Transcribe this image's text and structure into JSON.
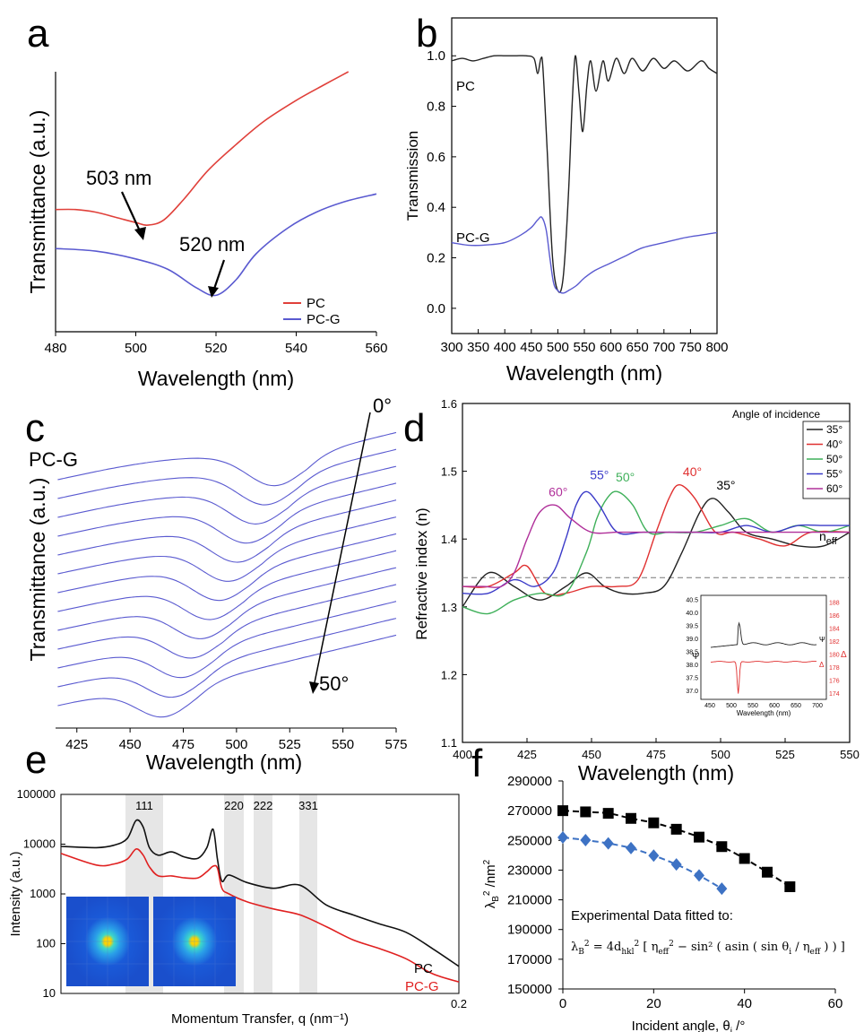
{
  "panels": {
    "a": {
      "label": "a"
    },
    "b": {
      "label": "b"
    },
    "c": {
      "label": "c"
    },
    "d": {
      "label": "d"
    },
    "e": {
      "label": "e"
    },
    "f": {
      "label": "f"
    }
  },
  "chart_data": [
    {
      "id": "a",
      "type": "line",
      "xlabel": "Wavelength (nm)",
      "ylabel": "Transmittance (a.u.)",
      "xlim": [
        480,
        560
      ],
      "ylim": [
        0,
        1
      ],
      "xticks": [
        "480",
        "500",
        "520",
        "540",
        "560"
      ],
      "legend": "bottom-right",
      "annotations": [
        "503 nm",
        "520 nm"
      ],
      "series": [
        {
          "name": "PC",
          "color": "#e0403a",
          "x": [
            480,
            485,
            490,
            495,
            500,
            503,
            507,
            512,
            518,
            525,
            532,
            540,
            547,
            553
          ],
          "y": [
            0.47,
            0.47,
            0.46,
            0.44,
            0.42,
            0.41,
            0.43,
            0.51,
            0.62,
            0.72,
            0.81,
            0.89,
            0.95,
            1.0
          ]
        },
        {
          "name": "PC-G",
          "color": "#5a5ad0",
          "x": [
            480,
            490,
            500,
            508,
            515,
            520,
            525,
            530,
            538,
            545,
            552,
            560
          ],
          "y": [
            0.32,
            0.31,
            0.28,
            0.24,
            0.17,
            0.14,
            0.2,
            0.3,
            0.4,
            0.46,
            0.5,
            0.53
          ]
        }
      ]
    },
    {
      "id": "b",
      "type": "line",
      "xlabel": "Wavelength (nm)",
      "ylabel": "Transmission",
      "xlim": [
        300,
        800
      ],
      "ylim": [
        -0.1,
        1.15
      ],
      "xticks": [
        "300",
        "350",
        "400",
        "450",
        "500",
        "550",
        "600",
        "650",
        "700",
        "750",
        "800"
      ],
      "yticks": [
        "0.0",
        "0.2",
        "0.4",
        "0.6",
        "0.8",
        "1.0"
      ],
      "series": [
        {
          "name": "PC",
          "color": "#222222",
          "x": [
            300,
            320,
            340,
            360,
            380,
            400,
            420,
            440,
            455,
            462,
            468,
            472,
            480,
            490,
            500,
            510,
            520,
            527,
            533,
            540,
            547,
            555,
            562,
            572,
            585,
            595,
            610,
            625,
            640,
            660,
            680,
            700,
            720,
            745,
            770,
            785,
            800
          ],
          "y": [
            0.98,
            0.99,
            0.98,
            0.99,
            1.0,
            1.0,
            1.0,
            1.0,
            0.99,
            0.93,
            0.99,
            0.95,
            0.62,
            0.2,
            0.07,
            0.12,
            0.45,
            0.81,
            1.0,
            0.85,
            0.7,
            0.89,
            0.98,
            0.86,
            0.98,
            0.9,
            0.99,
            0.93,
            0.99,
            0.94,
            0.99,
            0.95,
            0.98,
            0.94,
            0.98,
            0.95,
            0.93
          ]
        },
        {
          "name": "PC-G",
          "color": "#5a5ad0",
          "x": [
            300,
            330,
            360,
            400,
            430,
            450,
            462,
            470,
            478,
            485,
            492,
            500,
            510,
            520,
            535,
            550,
            570,
            600,
            630,
            660,
            700,
            740,
            770,
            800
          ],
          "y": [
            0.26,
            0.25,
            0.25,
            0.26,
            0.29,
            0.32,
            0.35,
            0.36,
            0.31,
            0.2,
            0.1,
            0.07,
            0.06,
            0.07,
            0.09,
            0.12,
            0.15,
            0.18,
            0.21,
            0.24,
            0.26,
            0.28,
            0.29,
            0.3
          ]
        }
      ]
    },
    {
      "id": "c",
      "type": "line",
      "xlabel": "Wavelength (nm)",
      "ylabel": "Transmittance (a.u.)",
      "xlim": [
        415,
        575
      ],
      "ylim": [
        0,
        1
      ],
      "xticks": [
        "425",
        "450",
        "475",
        "500",
        "525",
        "550",
        "575"
      ],
      "label": "PC-G",
      "annotations": [
        "0°",
        "50°"
      ],
      "series_count": 13,
      "dip_position_min": 466,
      "dip_position_max": 518,
      "color": "#5a5ad0"
    },
    {
      "id": "d",
      "type": "line",
      "xlabel": "Wavelength (nm)",
      "ylabel": "Refractive index (n)",
      "xlim": [
        400,
        550
      ],
      "ylim": [
        1.1,
        1.6
      ],
      "xticks": [
        "400",
        "425",
        "450",
        "475",
        "500",
        "525",
        "550"
      ],
      "yticks": [
        "1.1",
        "1.2",
        "1.3",
        "1.4",
        "1.5",
        "1.6"
      ],
      "legend_title": "Angle of incidence",
      "legend": "top-right",
      "neff_label": "n",
      "neff_subscript": "eff",
      "neff": 1.343,
      "series": [
        {
          "name": "35°",
          "color": "#222222",
          "x": [
            400,
            410,
            420,
            430,
            440,
            448,
            455,
            462,
            470,
            478,
            485,
            492,
            497,
            503,
            510,
            520,
            530,
            540,
            550
          ],
          "y": [
            1.3,
            1.35,
            1.33,
            1.31,
            1.33,
            1.35,
            1.33,
            1.32,
            1.32,
            1.33,
            1.38,
            1.44,
            1.46,
            1.44,
            1.41,
            1.4,
            1.39,
            1.39,
            1.41
          ]
        },
        {
          "name": "40°",
          "color": "#e03030",
          "x": [
            400,
            410,
            420,
            425,
            432,
            440,
            450,
            460,
            468,
            475,
            480,
            484,
            490,
            498,
            505,
            515,
            525,
            535,
            550
          ],
          "y": [
            1.33,
            1.33,
            1.35,
            1.36,
            1.32,
            1.32,
            1.33,
            1.33,
            1.34,
            1.41,
            1.46,
            1.48,
            1.46,
            1.41,
            1.41,
            1.4,
            1.39,
            1.41,
            1.41
          ]
        },
        {
          "name": "50°",
          "color": "#3fb05a",
          "x": [
            400,
            410,
            420,
            430,
            440,
            448,
            452,
            456,
            460,
            466,
            472,
            480,
            490,
            500,
            510,
            520,
            530,
            540,
            550
          ],
          "y": [
            1.3,
            1.29,
            1.31,
            1.32,
            1.32,
            1.38,
            1.43,
            1.46,
            1.47,
            1.45,
            1.41,
            1.41,
            1.41,
            1.42,
            1.43,
            1.41,
            1.42,
            1.41,
            1.42
          ]
        },
        {
          "name": "55°",
          "color": "#3a3ac8",
          "x": [
            400,
            410,
            420,
            428,
            435,
            440,
            444,
            448,
            453,
            460,
            470,
            480,
            490,
            500,
            510,
            520,
            530,
            540,
            550
          ],
          "y": [
            1.32,
            1.32,
            1.34,
            1.33,
            1.35,
            1.4,
            1.45,
            1.47,
            1.45,
            1.41,
            1.41,
            1.41,
            1.41,
            1.41,
            1.42,
            1.41,
            1.42,
            1.42,
            1.42
          ]
        },
        {
          "name": "60°",
          "color": "#b0309a",
          "x": [
            400,
            408,
            415,
            420,
            425,
            430,
            436,
            442,
            450,
            460,
            470,
            480,
            490,
            500,
            510,
            520,
            530,
            540,
            550
          ],
          "y": [
            1.33,
            1.33,
            1.33,
            1.35,
            1.4,
            1.44,
            1.45,
            1.43,
            1.41,
            1.41,
            1.41,
            1.41,
            1.41,
            1.41,
            1.41,
            1.41,
            1.41,
            1.41,
            1.41
          ]
        }
      ],
      "inset": {
        "xlabel": "Wavelength (nm)",
        "xlim": [
          450,
          700
        ],
        "xticks": [
          "450",
          "500",
          "550",
          "600",
          "650",
          "700"
        ],
        "y_left_label": "Ψ",
        "y_right_label": "Δ",
        "y_left_ticks": [
          "37.0",
          "37.5",
          "38.0",
          "38.5",
          "39.0",
          "39.5",
          "40.0",
          "40.5"
        ],
        "y_right_ticks": [
          "174",
          "176",
          "178",
          "180",
          "182",
          "184",
          "186",
          "188"
        ],
        "left_curve_label": "Ψ",
        "right_curve_label": "Δ"
      }
    },
    {
      "id": "e",
      "type": "line",
      "xlabel": "Momentum Transfer, q (nm⁻¹)",
      "ylabel": "Intensity (a.u.)",
      "y_scale": "log",
      "ylim": [
        10,
        100000
      ],
      "yticks": [
        "10",
        "100",
        "1000",
        "10000",
        "100000"
      ],
      "x_end_label": "0.2",
      "peaks": [
        "111",
        "220",
        "222",
        "331"
      ],
      "series": [
        {
          "name": "PC",
          "color": "#111111",
          "x": [
            0.0,
            0.04,
            0.06,
            0.075,
            0.085,
            0.093,
            0.1,
            0.11,
            0.125,
            0.14,
            0.155,
            0.165,
            0.172,
            0.177,
            0.182,
            0.19,
            0.21,
            0.24,
            0.27,
            0.3,
            0.33,
            0.36,
            0.39,
            0.42,
            0.45
          ],
          "y": [
            9000,
            8500,
            9500,
            13000,
            30000,
            22000,
            8500,
            6000,
            7000,
            5500,
            5200,
            8500,
            20000,
            5000,
            1800,
            2400,
            1700,
            1300,
            1500,
            600,
            380,
            250,
            170,
            80,
            35
          ]
        },
        {
          "name": "PC-G",
          "color": "#e02020",
          "x": [
            0.0,
            0.04,
            0.06,
            0.075,
            0.085,
            0.093,
            0.1,
            0.11,
            0.125,
            0.14,
            0.155,
            0.165,
            0.172,
            0.177,
            0.182,
            0.19,
            0.21,
            0.24,
            0.27,
            0.3,
            0.33,
            0.36,
            0.39,
            0.42,
            0.45
          ],
          "y": [
            6500,
            3800,
            4000,
            5000,
            8000,
            6000,
            3500,
            2300,
            2300,
            2100,
            2100,
            2800,
            3600,
            3300,
            1300,
            1000,
            700,
            500,
            380,
            220,
            120,
            80,
            50,
            25,
            17
          ]
        }
      ]
    },
    {
      "id": "f",
      "type": "scatter",
      "xlabel": "Incident angle, θ",
      "xlabel_sub": "i",
      "xlabel_unit": " /°",
      "ylabel": "λ",
      "ylabel_sub": "B",
      "ylabel_sup": "2",
      "ylabel_unit": " /nm",
      "ylabel_unit_sup": "2",
      "xlim": [
        0,
        60
      ],
      "ylim": [
        150000,
        290000
      ],
      "xticks": [
        "0",
        "20",
        "40",
        "60"
      ],
      "yticks": [
        "150000",
        "170000",
        "190000",
        "210000",
        "230000",
        "250000",
        "270000",
        "290000"
      ],
      "annotation": "Experimental Data fitted to:",
      "series": [
        {
          "color": "#000000",
          "marker": "square",
          "x": [
            0,
            5,
            10,
            15,
            20,
            25,
            30,
            35,
            40,
            45,
            50
          ],
          "y": [
            270000,
            269200,
            268200,
            264800,
            261800,
            257500,
            252200,
            245800,
            237800,
            228600,
            218800
          ]
        },
        {
          "color": "#3d72c4",
          "marker": "diamond",
          "x": [
            0,
            5,
            10,
            15,
            20,
            25,
            30,
            35
          ],
          "y": [
            252000,
            250200,
            248000,
            244800,
            239800,
            233800,
            226400,
            217500
          ]
        }
      ]
    }
  ]
}
